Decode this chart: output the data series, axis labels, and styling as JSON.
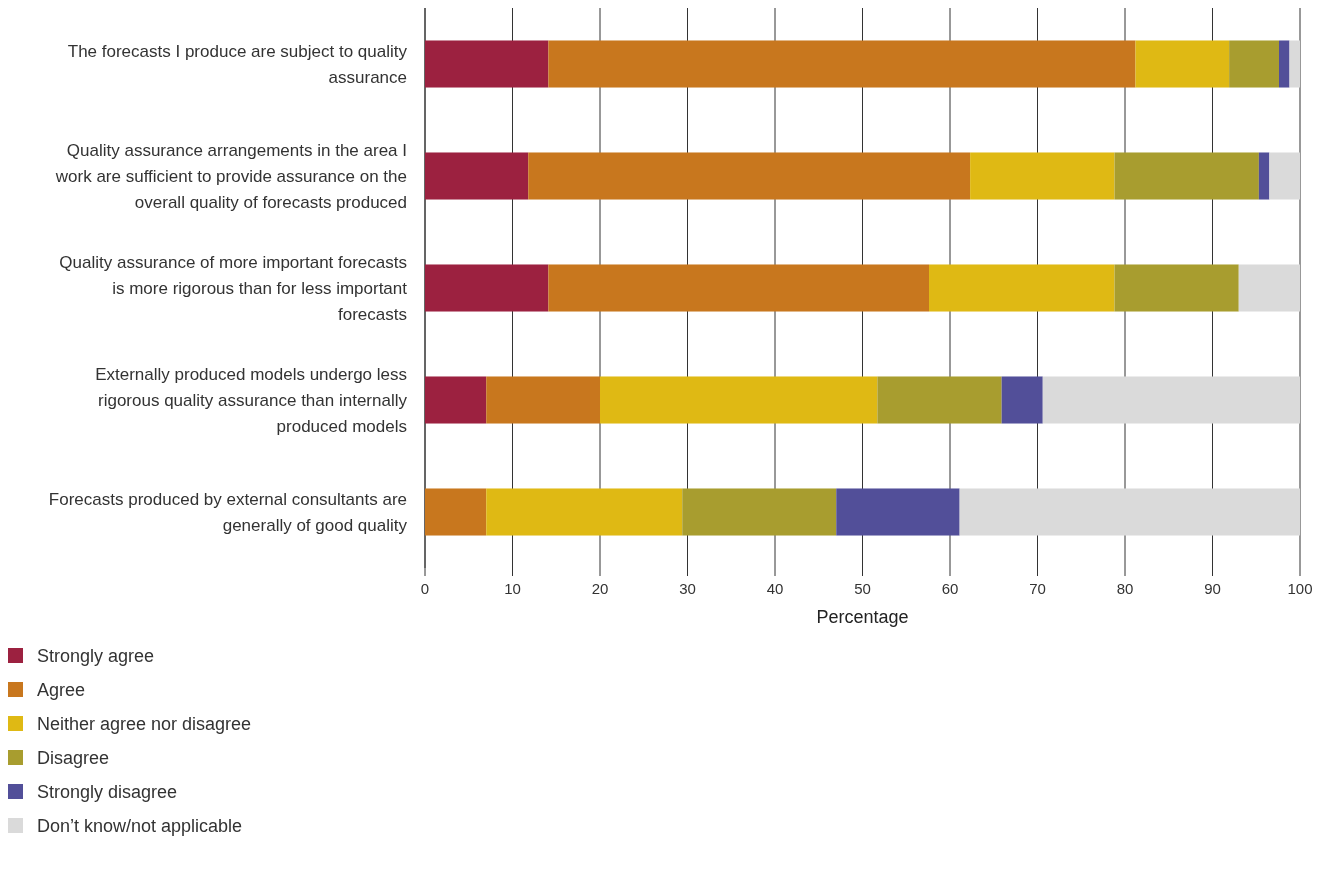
{
  "chart_data": {
    "type": "bar",
    "orientation": "horizontal",
    "stacked": true,
    "xlabel": "Percentage",
    "categories": [
      "The forecasts I produce are subject to quality assurance",
      "Quality assurance arrangements in the area I work are sufficient to provide assurance on the overall quality of forecasts produced",
      "Quality assurance of more important forecasts is more rigorous than for less important forecasts",
      "Externally produced models undergo less rigorous quality assurance than internally produced models",
      "Forecasts produced by external consultants are generally of good quality"
    ],
    "series": [
      {
        "name": "Strongly agree",
        "color": "#9c2140",
        "values": [
          14.1,
          11.8,
          14.1,
          7.0,
          0
        ]
      },
      {
        "name": "Agree",
        "color": "#c8771e",
        "values": [
          67.1,
          50.5,
          43.5,
          13.0,
          7.0
        ]
      },
      {
        "name": "Neither agree nor disagree",
        "color": "#dfb914",
        "values": [
          10.7,
          16.5,
          21.2,
          31.7,
          22.4
        ]
      },
      {
        "name": "Disagree",
        "color": "#a89d2f",
        "values": [
          5.7,
          16.5,
          14.2,
          14.2,
          17.6
        ]
      },
      {
        "name": "Strongly disagree",
        "color": "#524f99",
        "values": [
          1.2,
          1.2,
          0,
          4.7,
          14.1
        ]
      },
      {
        "name": "Don’t know/not applicable",
        "color": "#dadada",
        "values": [
          1.2,
          3.5,
          7.0,
          29.4,
          38.9
        ]
      }
    ],
    "xlim": [
      0,
      100
    ],
    "xticks": [
      0,
      10,
      20,
      30,
      40,
      50,
      60,
      70,
      80,
      90,
      100
    ],
    "grid": "x",
    "legend": "bottom left"
  }
}
